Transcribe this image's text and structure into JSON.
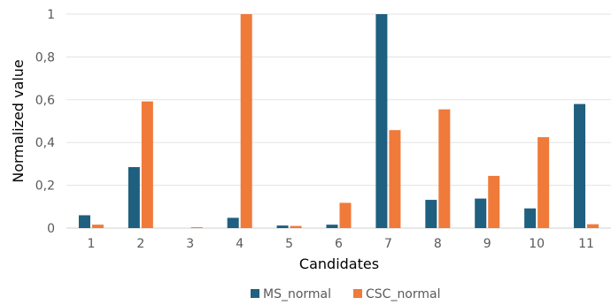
{
  "chart_data": {
    "type": "bar",
    "xlabel": "Candidates",
    "ylabel": "Normalized value",
    "ylim": [
      0,
      1
    ],
    "yticks": [
      "0",
      "0,2",
      "0,4",
      "0,6",
      "0,8",
      "1"
    ],
    "ytick_values": [
      0,
      0.2,
      0.4,
      0.6,
      0.8,
      1
    ],
    "grid": true,
    "legend_position": "bottom",
    "categories": [
      "1",
      "2",
      "3",
      "4",
      "5",
      "6",
      "7",
      "8",
      "9",
      "10",
      "11"
    ],
    "series": [
      {
        "name": "MS_normal",
        "color": "#1f5f7f",
        "values": [
          0.06,
          0.285,
          0.0,
          0.048,
          0.012,
          0.016,
          1.0,
          0.132,
          0.138,
          0.092,
          0.58
        ]
      },
      {
        "name": "CSC_normal",
        "color": "#ef7a3a",
        "values": [
          0.016,
          0.592,
          0.004,
          1.0,
          0.01,
          0.118,
          0.458,
          0.555,
          0.244,
          0.425,
          0.018
        ]
      }
    ]
  }
}
